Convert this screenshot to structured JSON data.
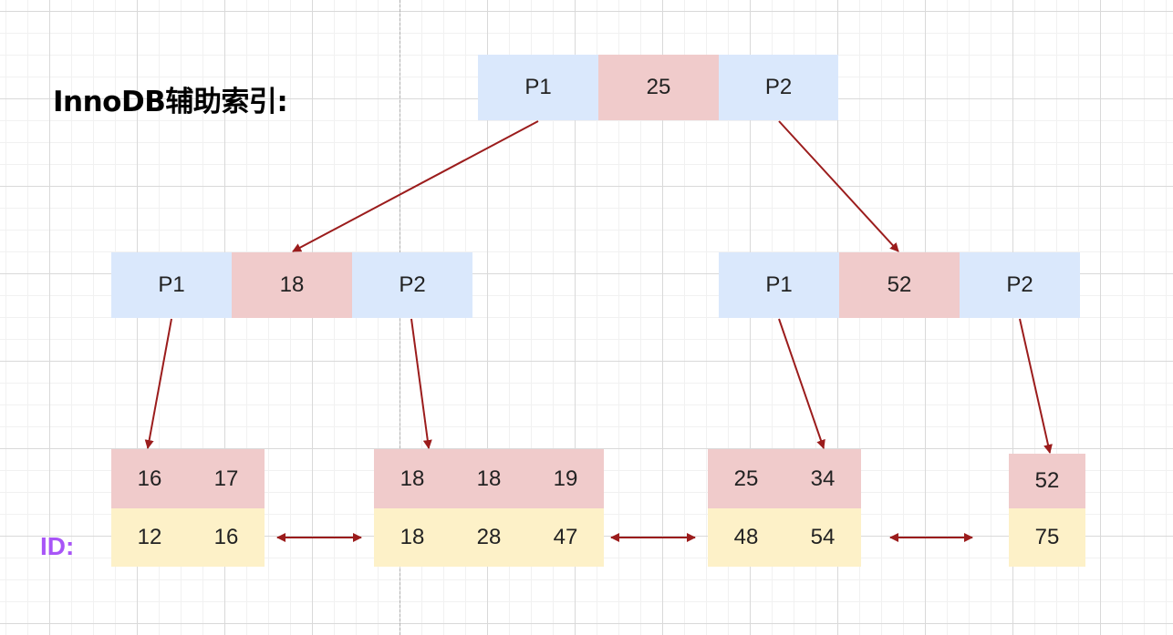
{
  "title": "InnoDB辅助索引:",
  "id_label": "ID:",
  "colors": {
    "pointer_cell": "#dae8fc",
    "key_cell": "#f0cbcb",
    "id_cell": "#fdf1c8",
    "arrow": "#9b1c1c",
    "id_label": "#a855f7"
  },
  "root": {
    "p1": "P1",
    "key": "25",
    "p2": "P2"
  },
  "internal_left": {
    "p1": "P1",
    "key": "18",
    "p2": "P2"
  },
  "internal_right": {
    "p1": "P1",
    "key": "52",
    "p2": "P2"
  },
  "leaves": [
    {
      "keys": [
        "16",
        "17"
      ],
      "ids": [
        "12",
        "16"
      ]
    },
    {
      "keys": [
        "18",
        "18",
        "19"
      ],
      "ids": [
        "18",
        "28",
        "47"
      ]
    },
    {
      "keys": [
        "25",
        "34"
      ],
      "ids": [
        "48",
        "54"
      ]
    },
    {
      "keys": [
        "52"
      ],
      "ids": [
        "75"
      ]
    }
  ]
}
